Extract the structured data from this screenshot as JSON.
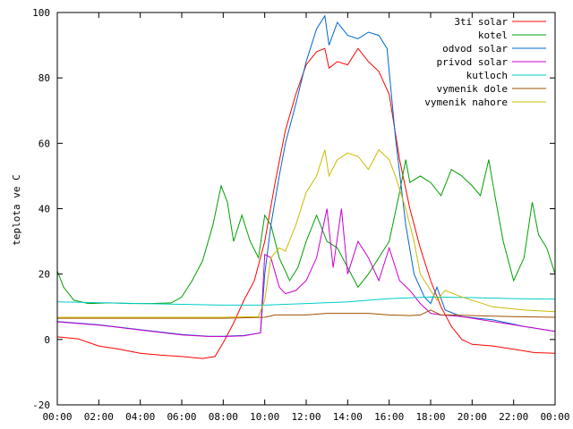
{
  "chart_data": {
    "type": "line",
    "title": "",
    "xlabel": "",
    "ylabel": "teplota ve C",
    "xlim": [
      0,
      24
    ],
    "ylim": [
      -20,
      100
    ],
    "xticks": [
      "00:00",
      "02:00",
      "04:00",
      "06:00",
      "08:00",
      "10:00",
      "12:00",
      "14:00",
      "16:00",
      "18:00",
      "20:00",
      "22:00",
      "00:00"
    ],
    "yticks": [
      -20,
      0,
      20,
      40,
      60,
      80,
      100
    ],
    "grid": false,
    "legend_position": "top-right",
    "series": [
      {
        "name": "3ti solar",
        "color": "#ff0000",
        "points": [
          [
            0,
            0.8
          ],
          [
            1,
            0.2
          ],
          [
            2,
            -2
          ],
          [
            3,
            -3
          ],
          [
            4,
            -4.2
          ],
          [
            5,
            -4.8
          ],
          [
            6,
            -5.2
          ],
          [
            7,
            -5.8
          ],
          [
            7.6,
            -5.2
          ],
          [
            8,
            -1
          ],
          [
            8.5,
            5
          ],
          [
            9,
            12
          ],
          [
            9.5,
            18
          ],
          [
            10,
            30
          ],
          [
            10.5,
            48
          ],
          [
            11,
            64
          ],
          [
            11.5,
            75
          ],
          [
            12,
            84
          ],
          [
            12.5,
            88
          ],
          [
            12.9,
            89
          ],
          [
            13.1,
            83
          ],
          [
            13.5,
            85
          ],
          [
            14,
            84
          ],
          [
            14.5,
            89
          ],
          [
            15,
            85
          ],
          [
            15.5,
            82
          ],
          [
            16,
            75
          ],
          [
            16.5,
            55
          ],
          [
            17,
            40
          ],
          [
            17.5,
            28
          ],
          [
            18,
            18
          ],
          [
            18.5,
            10
          ],
          [
            19,
            4
          ],
          [
            19.5,
            0
          ],
          [
            20,
            -1.5
          ],
          [
            21,
            -2
          ],
          [
            22,
            -3
          ],
          [
            23,
            -4
          ],
          [
            24,
            -4.2
          ]
        ]
      },
      {
        "name": "kotel",
        "color": "#00a000",
        "points": [
          [
            0,
            21
          ],
          [
            0.3,
            16
          ],
          [
            0.8,
            12
          ],
          [
            1.5,
            11
          ],
          [
            2.5,
            11.2
          ],
          [
            3.5,
            11
          ],
          [
            4.5,
            11
          ],
          [
            5.5,
            11.2
          ],
          [
            6,
            13
          ],
          [
            6.5,
            18
          ],
          [
            7,
            24
          ],
          [
            7.5,
            35
          ],
          [
            7.9,
            47
          ],
          [
            8.2,
            42
          ],
          [
            8.5,
            30
          ],
          [
            8.9,
            38
          ],
          [
            9.3,
            30
          ],
          [
            9.7,
            25
          ],
          [
            10,
            38
          ],
          [
            10.3,
            35
          ],
          [
            10.7,
            25
          ],
          [
            11.2,
            18
          ],
          [
            11.6,
            22
          ],
          [
            12,
            30
          ],
          [
            12.5,
            38
          ],
          [
            13,
            30
          ],
          [
            13.5,
            28
          ],
          [
            14,
            22
          ],
          [
            14.5,
            16
          ],
          [
            15,
            20
          ],
          [
            15.5,
            25
          ],
          [
            16,
            30
          ],
          [
            16.5,
            45
          ],
          [
            16.8,
            55
          ],
          [
            17,
            48
          ],
          [
            17.5,
            50
          ],
          [
            18,
            48
          ],
          [
            18.5,
            44
          ],
          [
            19,
            52
          ],
          [
            19.5,
            50
          ],
          [
            20,
            47
          ],
          [
            20.4,
            44
          ],
          [
            20.8,
            55
          ],
          [
            21.1,
            44
          ],
          [
            21.5,
            30
          ],
          [
            22,
            18
          ],
          [
            22.5,
            25
          ],
          [
            22.9,
            42
          ],
          [
            23.2,
            32
          ],
          [
            23.6,
            28
          ],
          [
            24,
            20
          ]
        ]
      },
      {
        "name": "odvod solar",
        "color": "#0066cc",
        "points": [
          [
            0,
            5.5
          ],
          [
            2,
            4.5
          ],
          [
            4,
            3
          ],
          [
            6,
            1.5
          ],
          [
            7.3,
            1
          ],
          [
            8,
            1
          ],
          [
            9,
            1.2
          ],
          [
            9.8,
            2
          ],
          [
            10,
            20
          ],
          [
            10.3,
            35
          ],
          [
            10.7,
            50
          ],
          [
            11,
            60
          ],
          [
            11.5,
            72
          ],
          [
            12,
            85
          ],
          [
            12.5,
            95
          ],
          [
            12.9,
            99
          ],
          [
            13.1,
            90
          ],
          [
            13.5,
            97
          ],
          [
            14,
            93
          ],
          [
            14.5,
            92
          ],
          [
            15,
            94
          ],
          [
            15.5,
            93
          ],
          [
            15.9,
            89
          ],
          [
            16.3,
            62
          ],
          [
            16.8,
            35
          ],
          [
            17.2,
            20
          ],
          [
            17.7,
            13
          ],
          [
            18,
            11
          ],
          [
            18.3,
            16
          ],
          [
            18.7,
            9
          ],
          [
            19.5,
            7
          ],
          [
            21,
            6
          ],
          [
            22.5,
            4
          ],
          [
            24,
            2.5
          ]
        ]
      },
      {
        "name": "privod solar",
        "color": "#cc00cc",
        "points": [
          [
            0,
            5.4
          ],
          [
            2,
            4.4
          ],
          [
            4,
            2.9
          ],
          [
            6,
            1.4
          ],
          [
            7.3,
            0.9
          ],
          [
            8,
            0.9
          ],
          [
            9,
            1.1
          ],
          [
            9.8,
            2
          ],
          [
            10,
            26
          ],
          [
            10.3,
            25
          ],
          [
            10.7,
            16
          ],
          [
            11,
            14
          ],
          [
            11.5,
            15
          ],
          [
            12,
            18
          ],
          [
            12.5,
            25
          ],
          [
            13,
            40
          ],
          [
            13.3,
            22
          ],
          [
            13.7,
            40
          ],
          [
            14,
            20
          ],
          [
            14.5,
            30
          ],
          [
            15,
            25
          ],
          [
            15.5,
            18
          ],
          [
            16,
            28
          ],
          [
            16.5,
            18
          ],
          [
            17,
            15
          ],
          [
            17.5,
            11
          ],
          [
            18,
            8
          ],
          [
            18.5,
            7.5
          ],
          [
            19.5,
            7
          ],
          [
            21,
            5.5
          ],
          [
            22.5,
            4
          ],
          [
            24,
            2.5
          ]
        ]
      },
      {
        "name": "kutloch",
        "color": "#00cccc",
        "points": [
          [
            0,
            11.5
          ],
          [
            4,
            11
          ],
          [
            8,
            10.5
          ],
          [
            10,
            10.5
          ],
          [
            12,
            11
          ],
          [
            14,
            11.5
          ],
          [
            16,
            12.5
          ],
          [
            18,
            13
          ],
          [
            20,
            12.8
          ],
          [
            22,
            12.5
          ],
          [
            24,
            12.3
          ]
        ]
      },
      {
        "name": "vymenik dole",
        "color": "#a05000",
        "points": [
          [
            0,
            6.5
          ],
          [
            4,
            6.5
          ],
          [
            8,
            6.5
          ],
          [
            10,
            6.8
          ],
          [
            10.5,
            7.5
          ],
          [
            12,
            7.5
          ],
          [
            13,
            8
          ],
          [
            14,
            8
          ],
          [
            15,
            8
          ],
          [
            16,
            7.5
          ],
          [
            17,
            7.3
          ],
          [
            17.5,
            7.5
          ],
          [
            18,
            9
          ],
          [
            18.5,
            7.5
          ],
          [
            19,
            7.5
          ],
          [
            20,
            7.3
          ],
          [
            22,
            7
          ],
          [
            24,
            6.8
          ]
        ]
      },
      {
        "name": "vymenik nahore",
        "color": "#ccbb00",
        "points": [
          [
            0,
            6.8
          ],
          [
            4,
            6.8
          ],
          [
            8,
            6.8
          ],
          [
            9.7,
            7
          ],
          [
            10,
            12
          ],
          [
            10.3,
            25
          ],
          [
            10.7,
            28
          ],
          [
            11,
            27
          ],
          [
            11.5,
            35
          ],
          [
            12,
            45
          ],
          [
            12.5,
            50
          ],
          [
            12.9,
            58
          ],
          [
            13.1,
            50
          ],
          [
            13.5,
            55
          ],
          [
            14,
            57
          ],
          [
            14.5,
            56
          ],
          [
            15,
            52
          ],
          [
            15.5,
            58
          ],
          [
            16,
            55
          ],
          [
            16.3,
            50
          ],
          [
            16.8,
            40
          ],
          [
            17.2,
            30
          ],
          [
            17.5,
            20
          ],
          [
            18,
            15
          ],
          [
            18.3,
            12
          ],
          [
            18.7,
            15
          ],
          [
            19.5,
            13
          ],
          [
            21,
            10
          ],
          [
            22.5,
            9
          ],
          [
            24,
            8.5
          ]
        ]
      }
    ]
  }
}
